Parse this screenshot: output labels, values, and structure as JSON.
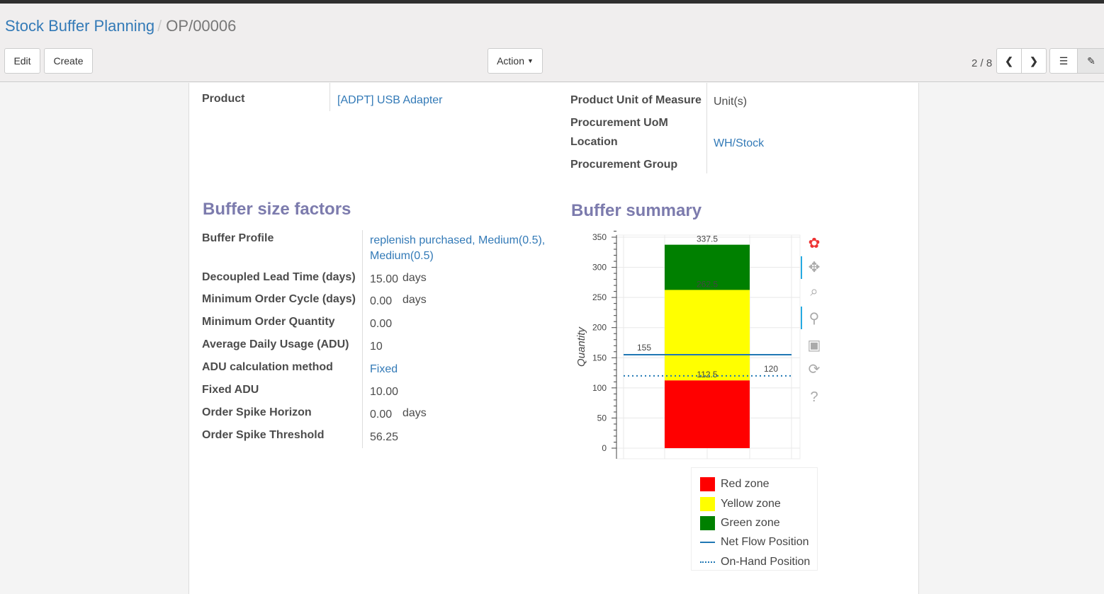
{
  "breadcrumb": {
    "parent": "Stock Buffer Planning",
    "current": "OP/00006"
  },
  "toolbar": {
    "edit": "Edit",
    "create": "Create",
    "action": "Action",
    "pager": "2 / 8"
  },
  "form": {
    "product_label": "Product",
    "product_value": "[ADPT] USB Adapter",
    "uom_label": "Product Unit of Measure",
    "uom_value": "Unit(s)",
    "proc_uom_label": "Procurement UoM",
    "location_label": "Location",
    "location_value": "WH/Stock",
    "proc_group_label": "Procurement Group"
  },
  "factors": {
    "title": "Buffer size factors",
    "rows": [
      {
        "label": "Buffer Profile",
        "value": "replenish purchased, Medium(0.5),",
        "value2": "Medium(0.5)",
        "link": true
      },
      {
        "label": "Decoupled Lead Time (days)",
        "value": "15.00",
        "unit": "days"
      },
      {
        "label": "Minimum Order Cycle (days)",
        "value": "0.00",
        "unit": "days"
      },
      {
        "label": "Minimum Order Quantity",
        "value": "0.00"
      },
      {
        "label": "Average Daily Usage (ADU)",
        "value": "10"
      },
      {
        "label": "ADU calculation method",
        "value": "Fixed",
        "link": true
      },
      {
        "label": "Fixed ADU",
        "value": "10.00"
      },
      {
        "label": "Order Spike Horizon",
        "value": "0.00",
        "unit": "days"
      },
      {
        "label": "Order Spike Threshold",
        "value": "56.25"
      }
    ]
  },
  "summary": {
    "title": "Buffer summary"
  },
  "chart_data": {
    "type": "bar",
    "stacked": true,
    "ylabel": "Quantity",
    "ylim": [
      0,
      350
    ],
    "yticks": [
      "0",
      "50",
      "100",
      "150",
      "200",
      "250",
      "300",
      "350"
    ],
    "series": [
      {
        "name": "Red zone",
        "from": 0,
        "to": 112.5,
        "color": "#ff0000",
        "label": "112.5"
      },
      {
        "name": "Yellow zone",
        "from": 112.5,
        "to": 262.5,
        "color": "#ffff00",
        "label": "262.5"
      },
      {
        "name": "Green zone",
        "from": 262.5,
        "to": 337.5,
        "color": "#008000",
        "label": "337.5"
      }
    ],
    "lines": [
      {
        "name": "Net Flow Position",
        "value": 155,
        "label": "155",
        "style": "solid",
        "color": "#1f77b4"
      },
      {
        "name": "On-Hand Position",
        "value": 120,
        "label": "120",
        "style": "dotted",
        "color": "#1f77b4"
      }
    ],
    "grid": true,
    "legend": "bottom"
  }
}
